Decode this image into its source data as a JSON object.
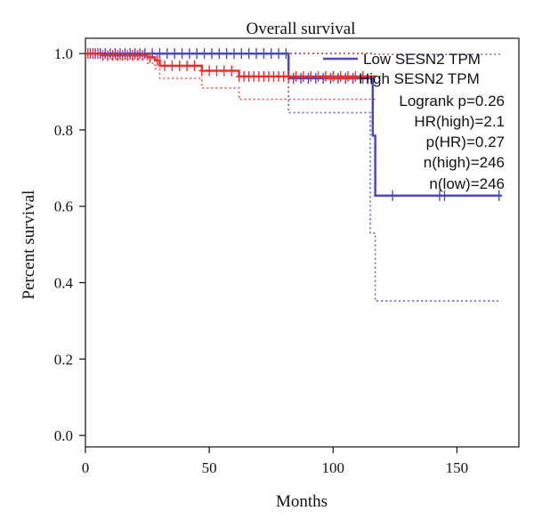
{
  "chart_data": {
    "type": "line",
    "title": "Overall survival",
    "xlabel": "Months",
    "ylabel": "Percent survival",
    "xlim": [
      0,
      175
    ],
    "ylim": [
      -0.03,
      1.04
    ],
    "x_ticks": [
      "0",
      "50",
      "100",
      "150"
    ],
    "y_ticks": [
      "0.0",
      "0.2",
      "0.4",
      "0.6",
      "0.8",
      "1.0"
    ],
    "legend": {
      "placement": "top-right",
      "entries": [
        "Low SESN2 TPM",
        "High SESN2 TPM"
      ]
    },
    "annotations": [
      "Logrank p=0.26",
      "HR(high)=2.1",
      "p(HR)=0.27",
      "n(high)=246",
      "n(low)=246"
    ],
    "series": [
      {
        "name": "Low SESN2 TPM",
        "color": "#4a4abf",
        "x": [
          0,
          82,
          82,
          116,
          116,
          117,
          117,
          168
        ],
        "y": [
          1.0,
          1.0,
          0.935,
          0.935,
          0.785,
          0.785,
          0.628,
          0.628
        ],
        "ci_upper": {
          "x": [
            0,
            116,
            116,
            168
          ],
          "y": [
            1.0,
            1.0,
            0.998,
            0.998
          ]
        },
        "ci_lower": {
          "x": [
            0,
            82,
            82,
            115,
            115,
            117,
            117,
            168
          ],
          "y": [
            1.0,
            1.0,
            0.845,
            0.845,
            0.53,
            0.53,
            0.352,
            0.352
          ]
        },
        "censor_x": [
          2,
          4,
          6,
          8,
          10,
          12,
          14,
          16,
          18,
          20,
          22,
          24,
          27,
          30,
          33,
          36,
          39,
          42,
          45,
          48,
          51,
          54,
          57,
          60,
          63,
          66,
          69,
          72,
          75,
          78,
          81,
          84,
          87,
          90,
          93,
          96,
          99,
          102,
          105,
          108,
          112,
          124,
          143,
          145,
          167
        ]
      },
      {
        "name": "High SESN2 TPM",
        "color": "#e83030",
        "x": [
          0,
          7,
          7,
          25,
          25,
          28,
          28,
          30,
          30,
          47,
          47,
          62,
          62,
          117
        ],
        "y": [
          1.0,
          1.0,
          0.995,
          0.995,
          0.99,
          0.99,
          0.982,
          0.982,
          0.968,
          0.968,
          0.955,
          0.955,
          0.94,
          0.94
        ],
        "ci_upper": {
          "x": [
            0,
            117
          ],
          "y": [
            1.0,
            1.0
          ]
        },
        "ci_lower": {
          "x": [
            0,
            7,
            7,
            25,
            25,
            28,
            28,
            30,
            30,
            47,
            47,
            62,
            62,
            117
          ],
          "y": [
            1.0,
            1.0,
            0.985,
            0.985,
            0.975,
            0.975,
            0.96,
            0.96,
            0.935,
            0.935,
            0.91,
            0.91,
            0.88,
            0.88
          ]
        },
        "censor_x": [
          1,
          3,
          5,
          7,
          9,
          11,
          13,
          15,
          17,
          19,
          21,
          23,
          26,
          29,
          32,
          35,
          38,
          41,
          44,
          47,
          50,
          53,
          56,
          59,
          62,
          64,
          66,
          68,
          70,
          72,
          74,
          76,
          78,
          80,
          82,
          85,
          88,
          91,
          94,
          97,
          100,
          103,
          106,
          109,
          112
        ]
      }
    ]
  }
}
